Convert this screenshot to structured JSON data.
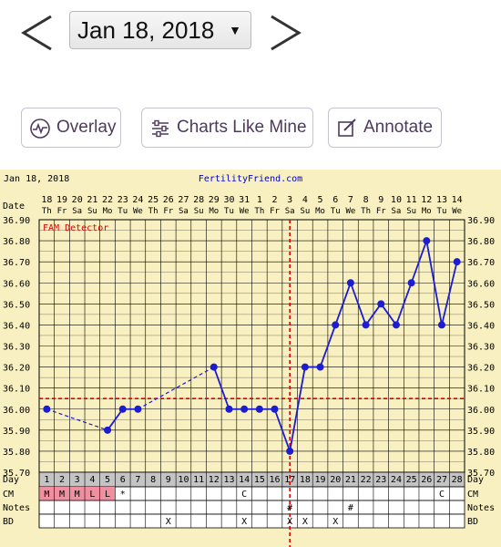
{
  "nav": {
    "selected_date": "Jan 18, 2018",
    "prev_icon": "chevron-left-icon",
    "next_icon": "chevron-right-icon"
  },
  "toolbar": {
    "overlay_label": "Overlay",
    "charts_like_mine_label": "Charts Like Mine",
    "annotate_label": "Annotate"
  },
  "chart_data": {
    "type": "line",
    "header_date": "Jan 18, 2018",
    "site": "FertilityFriend.com",
    "row_labels": {
      "date": "Date",
      "day": "Day",
      "cm": "CM",
      "notes": "Notes",
      "bd": "BD"
    },
    "dates": [
      "18",
      "19",
      "20",
      "21",
      "22",
      "23",
      "24",
      "25",
      "26",
      "27",
      "28",
      "29",
      "30",
      "31",
      "1",
      "2",
      "3",
      "4",
      "5",
      "6",
      "7",
      "8",
      "9",
      "10",
      "11",
      "12",
      "13",
      "14"
    ],
    "weekdays": [
      "Th",
      "Fr",
      "Sa",
      "Su",
      "Mo",
      "Tu",
      "We",
      "Th",
      "Fr",
      "Sa",
      "Su",
      "Mo",
      "Tu",
      "We",
      "Th",
      "Fr",
      "Sa",
      "Su",
      "Mo",
      "Tu",
      "We",
      "Th",
      "Fr",
      "Sa",
      "Su",
      "Mo",
      "Tu",
      "We"
    ],
    "days": [
      1,
      2,
      3,
      4,
      5,
      6,
      7,
      8,
      9,
      10,
      11,
      12,
      13,
      14,
      15,
      16,
      17,
      18,
      19,
      20,
      21,
      22,
      23,
      24,
      25,
      26,
      27,
      28
    ],
    "temps": [
      36.0,
      null,
      null,
      null,
      35.9,
      36.0,
      36.0,
      null,
      null,
      null,
      null,
      36.2,
      36.0,
      36.0,
      36.0,
      36.0,
      35.8,
      36.2,
      36.2,
      36.4,
      36.6,
      36.4,
      36.5,
      36.4,
      36.6,
      36.8,
      36.4,
      36.7
    ],
    "y_ticks": [
      "36.90",
      "36.80",
      "36.70",
      "36.60",
      "36.50",
      "36.40",
      "36.30",
      "36.20",
      "36.10",
      "36.00",
      "35.90",
      "35.80",
      "35.70"
    ],
    "ylim": [
      35.7,
      36.9
    ],
    "coverline": 36.05,
    "ovulation_day": 17,
    "annotation": "FAM Detector",
    "cm": [
      "M",
      "M",
      "M",
      "L",
      "L",
      "*",
      "",
      "",
      "",
      "",
      "",
      "",
      "",
      "C",
      "",
      "",
      "",
      "",
      "",
      "",
      "",
      "",
      "",
      "",
      "",
      "",
      "C",
      ""
    ],
    "notes": [
      "",
      "",
      "",
      "",
      "",
      "",
      "",
      "",
      "",
      "",
      "",
      "",
      "",
      "",
      "",
      "",
      "#",
      "",
      "",
      "",
      "#",
      "",
      "",
      "",
      "",
      "",
      "",
      ""
    ],
    "bd": [
      "",
      "",
      "",
      "",
      "",
      "",
      "",
      "",
      "X",
      "",
      "",
      "",
      "",
      "X",
      "",
      "",
      "X",
      "X",
      "",
      "X",
      "",
      "",
      "",
      "",
      "",
      "",
      "",
      ""
    ],
    "colors": {
      "chart_bg": "#f8f0c0",
      "line": "#1c1cd0",
      "coverline": "#e00000",
      "menses": "#ef8fa0"
    }
  }
}
